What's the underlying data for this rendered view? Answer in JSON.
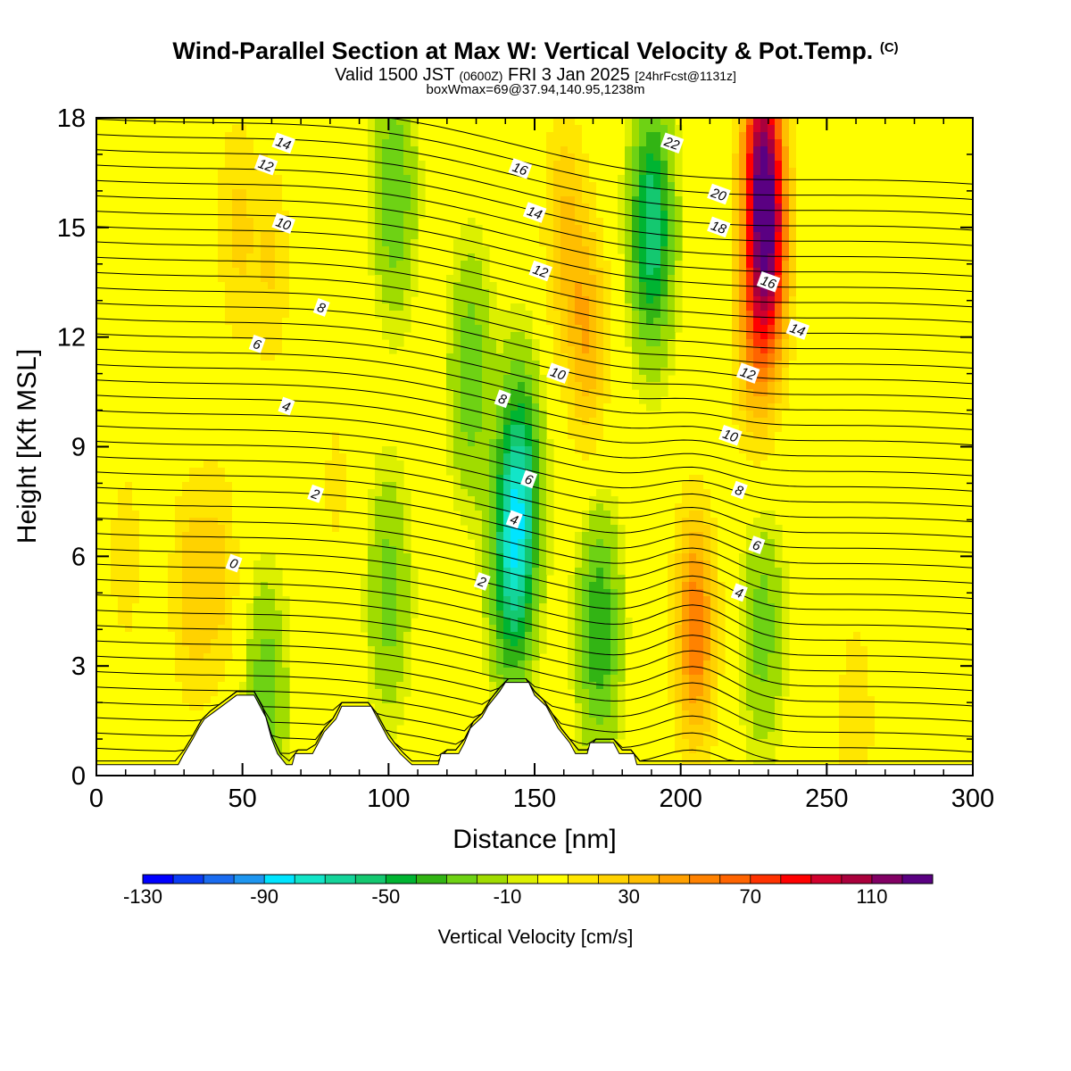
{
  "title": {
    "main": "Wind-Parallel Section at Max W: Vertical Velocity & Pot.Temp.",
    "copyright": "(C)",
    "valid_prefix": "Valid 1500 JST",
    "valid_utc": "(0600Z)",
    "valid_date": "FRI 3 Jan 2025",
    "forecast": "[24hrFcst@1131z]",
    "box_info": "boxWmax=69@37.94,140.95,1238m"
  },
  "chart_data": {
    "type": "heatmap",
    "xlabel": "Distance [nm]",
    "ylabel": "Height [Kft MSL]",
    "xlim": [
      0,
      300
    ],
    "ylim": [
      0,
      18
    ],
    "x_ticks": [
      0,
      50,
      100,
      150,
      200,
      250,
      300
    ],
    "y_ticks": [
      0,
      3,
      6,
      9,
      12,
      15,
      18
    ],
    "colorbar": {
      "title": "Vertical Velocity [cm/s]",
      "min": -130,
      "max": 130,
      "step": 10,
      "tick_labels": [
        "-130",
        "-90",
        "-50",
        "-10",
        "30",
        "70",
        "110"
      ],
      "colors": [
        "#0000ff",
        "#0a3cf5",
        "#1a6cf0",
        "#1e96f0",
        "#00e5ff",
        "#12e5c8",
        "#14d49a",
        "#14c870",
        "#00b432",
        "#32b414",
        "#6ed214",
        "#a0dc00",
        "#dcf000",
        "#ffff00",
        "#ffe600",
        "#ffd200",
        "#ffbe00",
        "#ffa000",
        "#ff8200",
        "#ff6400",
        "#ff3200",
        "#ff0000",
        "#d2002d",
        "#aa003c",
        "#820064",
        "#5a0082"
      ]
    },
    "vertical_velocity_features": [
      {
        "x": 10,
        "z": 6,
        "w": 15
      },
      {
        "x": 32,
        "z": 5,
        "w": 25
      },
      {
        "x": 42,
        "z": 5.5,
        "w": 22
      },
      {
        "x": 48,
        "z": 15,
        "w": 22
      },
      {
        "x": 58,
        "z": 2,
        "w": -28
      },
      {
        "x": 60,
        "z": 14,
        "w": 20
      },
      {
        "x": 82,
        "z": 8,
        "w": 12
      },
      {
        "x": 100,
        "z": 5,
        "w": -25
      },
      {
        "x": 102,
        "z": 16,
        "w": -30
      },
      {
        "x": 128,
        "z": 11,
        "w": -28
      },
      {
        "x": 145,
        "z": 8,
        "w": -55
      },
      {
        "x": 142,
        "z": 5.5,
        "w": -50
      },
      {
        "x": 160,
        "z": 15,
        "w": 30
      },
      {
        "x": 168,
        "z": 12,
        "w": 38
      },
      {
        "x": 172,
        "z": 4,
        "w": -40
      },
      {
        "x": 190,
        "z": 15,
        "w": -60
      },
      {
        "x": 205,
        "z": 4,
        "w": 60
      },
      {
        "x": 225,
        "z": 12,
        "w": 35
      },
      {
        "x": 228,
        "z": 17,
        "w": 95
      },
      {
        "x": 230,
        "z": 14,
        "w": 72
      },
      {
        "x": 228,
        "z": 4,
        "w": -25
      },
      {
        "x": 260,
        "z": 1.5,
        "w": 18
      },
      {
        "x": 290,
        "z": 10,
        "w": 8
      }
    ],
    "terrain_profile": [
      [
        0,
        0.3
      ],
      [
        28,
        0.3
      ],
      [
        30,
        0.6
      ],
      [
        33,
        1.0
      ],
      [
        35,
        1.3
      ],
      [
        37,
        1.55
      ],
      [
        43,
        1.9
      ],
      [
        48,
        2.2
      ],
      [
        54,
        2.2
      ],
      [
        56,
        1.9
      ],
      [
        58,
        1.6
      ],
      [
        60,
        1.0
      ],
      [
        62,
        0.6
      ],
      [
        65,
        0.3
      ],
      [
        67,
        0.3
      ],
      [
        68,
        0.6
      ],
      [
        74,
        0.6
      ],
      [
        76,
        0.9
      ],
      [
        78,
        1.2
      ],
      [
        82,
        1.55
      ],
      [
        84,
        1.9
      ],
      [
        94,
        1.9
      ],
      [
        96,
        1.6
      ],
      [
        98,
        1.3
      ],
      [
        100,
        1.0
      ],
      [
        104,
        0.6
      ],
      [
        108,
        0.3
      ],
      [
        117,
        0.3
      ],
      [
        118,
        0.6
      ],
      [
        124,
        0.6
      ],
      [
        126,
        0.9
      ],
      [
        128,
        1.3
      ],
      [
        132,
        1.6
      ],
      [
        134,
        1.9
      ],
      [
        138,
        2.3
      ],
      [
        140,
        2.55
      ],
      [
        148,
        2.55
      ],
      [
        150,
        2.2
      ],
      [
        154,
        1.9
      ],
      [
        156,
        1.6
      ],
      [
        158,
        1.3
      ],
      [
        162,
        0.9
      ],
      [
        164,
        0.6
      ],
      [
        168,
        0.6
      ],
      [
        169,
        0.9
      ],
      [
        177,
        0.9
      ],
      [
        179,
        0.6
      ],
      [
        184,
        0.6
      ],
      [
        185,
        0.3
      ],
      [
        300,
        0.3
      ]
    ],
    "theta_contour_labels": [
      {
        "text": "14",
        "x": 64,
        "z": 17.3
      },
      {
        "text": "12",
        "x": 58,
        "z": 16.7
      },
      {
        "text": "10",
        "x": 64,
        "z": 15.1
      },
      {
        "text": "8",
        "x": 77,
        "z": 12.8
      },
      {
        "text": "6",
        "x": 55,
        "z": 11.8
      },
      {
        "text": "4",
        "x": 65,
        "z": 10.1
      },
      {
        "text": "2",
        "x": 75,
        "z": 7.7
      },
      {
        "text": "0",
        "x": 47,
        "z": 5.8
      },
      {
        "text": "16",
        "x": 145,
        "z": 16.6
      },
      {
        "text": "14",
        "x": 150,
        "z": 15.4
      },
      {
        "text": "12",
        "x": 152,
        "z": 13.8
      },
      {
        "text": "10",
        "x": 158,
        "z": 11.0
      },
      {
        "text": "8",
        "x": 139,
        "z": 10.3
      },
      {
        "text": "6",
        "x": 148,
        "z": 8.1
      },
      {
        "text": "4",
        "x": 143,
        "z": 7.0
      },
      {
        "text": "2",
        "x": 132,
        "z": 5.3
      },
      {
        "text": "22",
        "x": 197,
        "z": 17.3
      },
      {
        "text": "20",
        "x": 213,
        "z": 15.9
      },
      {
        "text": "18",
        "x": 213,
        "z": 15.0
      },
      {
        "text": "16",
        "x": 230,
        "z": 13.5
      },
      {
        "text": "14",
        "x": 240,
        "z": 12.2
      },
      {
        "text": "12",
        "x": 223,
        "z": 11.0
      },
      {
        "text": "10",
        "x": 217,
        "z": 9.3
      },
      {
        "text": "8",
        "x": 220,
        "z": 7.8
      },
      {
        "text": "6",
        "x": 226,
        "z": 6.3
      },
      {
        "text": "4",
        "x": 220,
        "z": 5.0
      }
    ]
  }
}
